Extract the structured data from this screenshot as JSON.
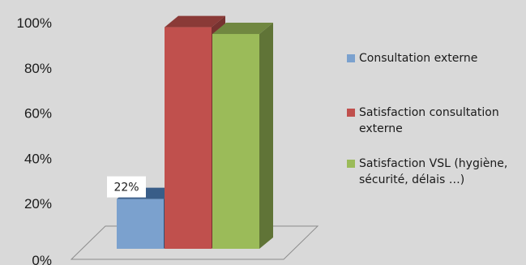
{
  "chart_data": {
    "type": "bar",
    "style": "3d-column",
    "categories": [
      "Consultation externe",
      "Satisfaction consultation externe",
      "Satisfaction VSL (hygiène, sécurité, délais …)"
    ],
    "values": [
      22,
      98,
      95
    ],
    "value_unit": "%",
    "data_labels": [
      "22%",
      "",
      ""
    ],
    "colors": [
      "#4f81bd",
      "#c0504d",
      "#9bbb59"
    ],
    "y_ticks": [
      "0%",
      "20%",
      "40%",
      "60%",
      "80%",
      "100%"
    ],
    "ylim": [
      0,
      100
    ],
    "title": "",
    "xlabel": "",
    "ylabel": "",
    "legend": {
      "position": "right",
      "items": [
        {
          "label": "Consultation externe",
          "color": "#4f81bd"
        },
        {
          "label": "Satisfaction consultation externe",
          "color": "#c0504d"
        },
        {
          "label": "Satisfaction VSL (hygiène, sécurité, délais …)",
          "color": "#9bbb59"
        }
      ]
    },
    "background_color": "#d9d9d9"
  }
}
